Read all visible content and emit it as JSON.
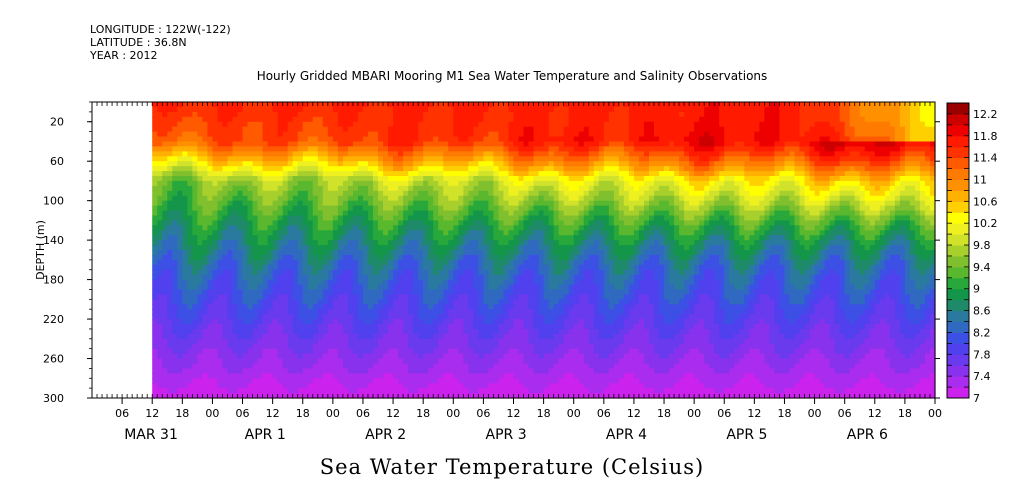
{
  "header": {
    "longitude": "LONGITUDE : 122W(-122)",
    "latitude": "LATITUDE : 36.8N",
    "year": "YEAR : 2012"
  },
  "chart_data": {
    "type": "heatmap",
    "title": "Hourly Gridded MBARI Mooring M1 Sea Water Temperature and Salinity Observations",
    "xlabel": "Sea Water Temperature (Celsius)",
    "ylabel": "DEPTH (m)",
    "y_range": [
      0,
      300
    ],
    "y_ticks": [
      20,
      60,
      100,
      140,
      180,
      220,
      260,
      300
    ],
    "y_inverted": true,
    "x_range_hours": [
      0,
      168
    ],
    "x_hour_ticks": [
      "06",
      "12",
      "18",
      "00",
      "06",
      "12",
      "18",
      "00",
      "06",
      "12",
      "18",
      "00",
      "06",
      "12",
      "18",
      "00",
      "06",
      "12",
      "18",
      "00",
      "06",
      "12",
      "18",
      "00",
      "06",
      "12",
      "18",
      "00",
      "06",
      "12",
      "18",
      "00"
    ],
    "x_day_labels": [
      "MAR 31",
      "APR  1",
      "APR  2",
      "APR  3",
      "APR  4",
      "APR  5",
      "APR  6"
    ],
    "colorbar_levels": [
      "12.2",
      "11.8",
      "11.4",
      "11",
      "10.6",
      "10.2",
      "9.8",
      "9.4",
      "9",
      "8.6",
      "8.2",
      "7.8",
      "7.4",
      "7"
    ],
    "colorbar_range": [
      7,
      12.4
    ],
    "no_data_until_hour": 12,
    "colors": {
      "7.0": "#cc22ee",
      "7.2": "#aa2cee",
      "7.4": "#8832ee",
      "7.6": "#6a3aee",
      "7.8": "#5040ee",
      "8.0": "#3c50e6",
      "8.2": "#306ac0",
      "8.4": "#2a7aa0",
      "8.6": "#1e8a6a",
      "8.8": "#14964a",
      "9.0": "#28a83a",
      "9.2": "#5ab82e",
      "9.4": "#80c02e",
      "9.6": "#a8d02c",
      "9.8": "#d0e22a",
      "10.0": "#eef020",
      "10.2": "#ffff00",
      "10.4": "#ffd000",
      "10.6": "#ffb000",
      "10.8": "#ff9000",
      "11.0": "#ff7a00",
      "11.2": "#ff5a00",
      "11.4": "#ff3200",
      "11.6": "#ff1a00",
      "11.8": "#ee0000",
      "12.0": "#cc0000",
      "12.2": "#990000"
    }
  }
}
